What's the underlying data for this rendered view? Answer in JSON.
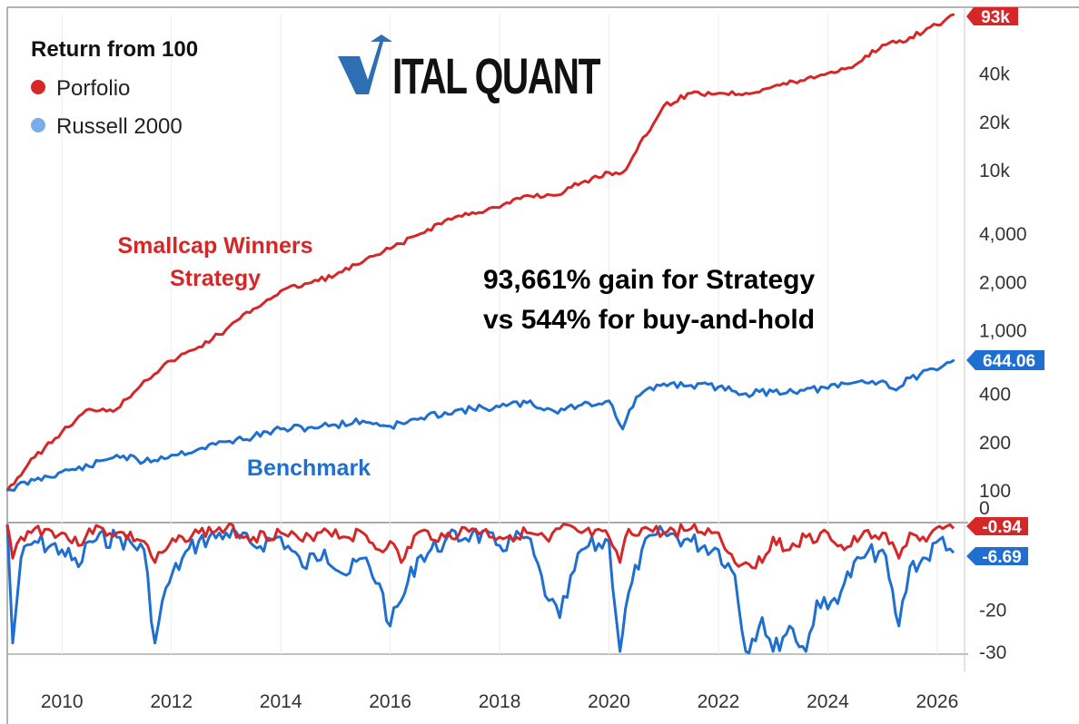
{
  "logo": {
    "text": "VITAL QUANT",
    "accent_color": "#2e6fb3"
  },
  "legend": {
    "title": "Return from 100",
    "items": [
      {
        "label": "Porfolio",
        "color": "#d62728"
      },
      {
        "label": "Russell 2000",
        "color": "#78aee8"
      }
    ]
  },
  "annotations": {
    "strategy_line1": "Smallcap Winners",
    "strategy_line2": "Strategy",
    "benchmark": "Benchmark",
    "gain_line1": "93,661% gain for Strategy",
    "gain_line2": "vs 544% for buy-and-hold"
  },
  "badges": {
    "portfolio_last": "93k",
    "benchmark_last": "644.06",
    "portfolio_dd_last": "-0.94",
    "benchmark_dd_last": "-6.69"
  },
  "colors": {
    "portfolio": "#d62728",
    "benchmark": "#1f6fd1",
    "badge_blue": "#1f6fd1",
    "badge_red": "#d62728"
  },
  "chart_data": [
    {
      "type": "line",
      "title": "Return from 100",
      "y_scale": "log",
      "x_tick_labels": [
        "2010",
        "2012",
        "2014",
        "2016",
        "2018",
        "2020",
        "2022",
        "2024",
        "2026"
      ],
      "y_tick_labels": [
        "100",
        "200",
        "400",
        "1,000",
        "2,000",
        "4,000",
        "10k",
        "20k",
        "40k"
      ],
      "y_tick_values": [
        100,
        200,
        400,
        1000,
        2000,
        4000,
        10000,
        20000,
        40000
      ],
      "y_zero_label": "0",
      "xlim": [
        2009.0,
        2026.4
      ],
      "x": [
        2009.0,
        2009.5,
        2010.0,
        2010.5,
        2011.0,
        2011.5,
        2012.0,
        2012.5,
        2013.0,
        2013.5,
        2014.0,
        2014.5,
        2015.0,
        2015.5,
        2016.0,
        2016.5,
        2017.0,
        2017.5,
        2018.0,
        2018.5,
        2019.0,
        2019.5,
        2020.0,
        2020.25,
        2020.5,
        2021.0,
        2021.5,
        2022.0,
        2022.5,
        2023.0,
        2023.5,
        2024.0,
        2024.5,
        2025.0,
        2025.25,
        2025.5,
        2026.0,
        2026.3
      ],
      "series": [
        {
          "name": "Porfolio",
          "values": [
            100,
            160,
            230,
            320,
            320,
            480,
            640,
            780,
            1000,
            1350,
            1750,
            1950,
            2200,
            2650,
            3200,
            3900,
            4800,
            5400,
            5800,
            6900,
            6900,
            8300,
            9600,
            9600,
            13000,
            25000,
            30000,
            30000,
            30000,
            33000,
            36000,
            40000,
            45000,
            60000,
            62000,
            67000,
            80000,
            93000
          ]
        },
        {
          "name": "Russell 2000",
          "values": [
            100,
            115,
            130,
            140,
            165,
            150,
            165,
            180,
            200,
            215,
            240,
            245,
            255,
            270,
            250,
            275,
            305,
            320,
            330,
            350,
            310,
            340,
            360,
            240,
            380,
            460,
            450,
            440,
            400,
            410,
            420,
            430,
            470,
            480,
            420,
            500,
            560,
            644.06
          ]
        }
      ]
    },
    {
      "type": "line",
      "title": "",
      "y_tick_labels": [
        "-20",
        "-30"
      ],
      "y_tick_values": [
        -20,
        -30
      ],
      "ylim": [
        -30,
        0
      ],
      "x": [
        2009.0,
        2009.1,
        2009.25,
        2009.5,
        2010.0,
        2010.3,
        2010.5,
        2011.0,
        2011.5,
        2011.7,
        2011.9,
        2012.2,
        2012.5,
        2013.0,
        2013.5,
        2014.0,
        2014.4,
        2014.8,
        2015.2,
        2015.5,
        2015.8,
        2016.0,
        2016.2,
        2016.5,
        2017.0,
        2017.5,
        2018.0,
        2018.5,
        2018.9,
        2019.1,
        2019.5,
        2020.0,
        2020.2,
        2020.3,
        2020.6,
        2021.0,
        2021.5,
        2022.0,
        2022.3,
        2022.5,
        2022.8,
        2023.0,
        2023.3,
        2023.6,
        2023.8,
        2024.0,
        2024.3,
        2024.6,
        2025.0,
        2025.3,
        2025.5,
        2025.8,
        2026.1,
        2026.3
      ],
      "series": [
        {
          "name": "Porfolio",
          "values": [
            0,
            -8,
            -3,
            -1,
            -2,
            -5,
            -1,
            -2,
            -4,
            -9,
            -6,
            -3,
            -2,
            -1,
            -3,
            -2,
            -4,
            -1,
            -3,
            -2,
            -6,
            -4,
            -9,
            -2,
            -3,
            -1,
            -3,
            -2,
            -4,
            -1,
            -2,
            -3,
            -9,
            -3,
            -1,
            -2,
            -1,
            -2,
            -9,
            -9,
            -9,
            -3,
            -6,
            -3,
            -4,
            -2,
            -6,
            -3,
            -2,
            -8,
            -2,
            -4,
            -1,
            -0.94
          ]
        },
        {
          "name": "Russell 2000",
          "values": [
            0,
            -28,
            -8,
            -4,
            -6,
            -10,
            -4,
            -3,
            -6,
            -28,
            -15,
            -8,
            -4,
            -2,
            -5,
            -3,
            -10,
            -6,
            -12,
            -8,
            -14,
            -24,
            -18,
            -8,
            -4,
            -2,
            -5,
            -3,
            -18,
            -22,
            -6,
            -4,
            -30,
            -20,
            -6,
            -2,
            -4,
            -6,
            -12,
            -30,
            -22,
            -30,
            -24,
            -30,
            -18,
            -20,
            -14,
            -8,
            -6,
            -24,
            -10,
            -8,
            -3,
            -6.69
          ]
        }
      ]
    }
  ]
}
